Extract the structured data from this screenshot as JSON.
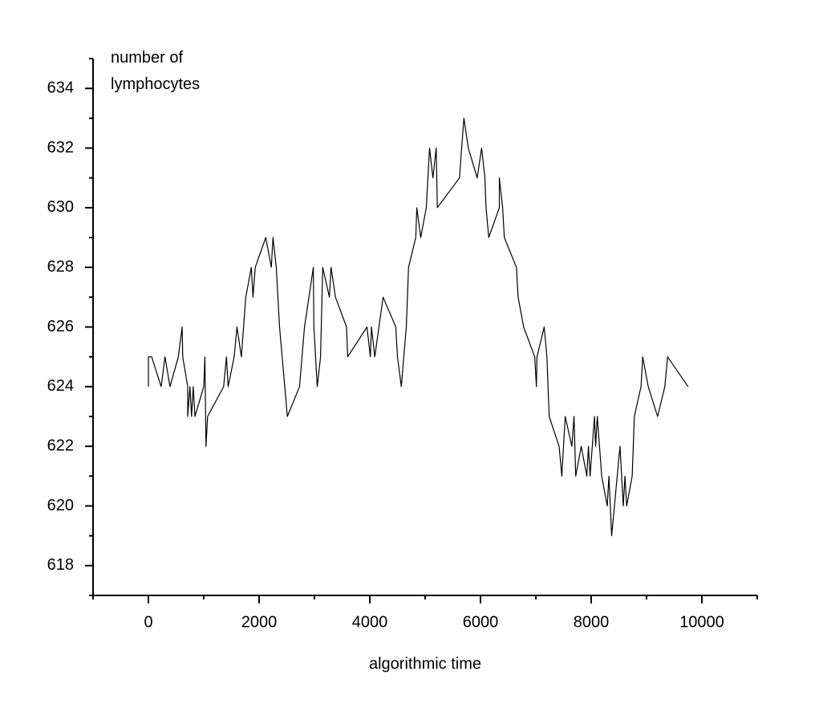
{
  "chart_data": {
    "type": "line",
    "y_label": "number of lymphocytes",
    "x_label": "algorithmic time",
    "color": "#000000",
    "x": [
      0,
      0,
      60,
      230,
      300,
      390,
      540,
      610,
      620,
      710,
      710,
      750,
      780,
      810,
      840,
      1000,
      1020,
      1040,
      1070,
      1360,
      1410,
      1440,
      1550,
      1600,
      1680,
      1760,
      1860,
      1890,
      1930,
      2120,
      2220,
      2250,
      2310,
      2370,
      2510,
      2730,
      2820,
      2980,
      2990,
      3050,
      3110,
      3150,
      3270,
      3300,
      3380,
      3580,
      3600,
      3950,
      4010,
      4030,
      4090,
      4240,
      4470,
      4500,
      4570,
      4660,
      4700,
      4830,
      4850,
      4920,
      5020,
      5080,
      5140,
      5200,
      5220,
      5620,
      5660,
      5700,
      5780,
      5940,
      6020,
      6080,
      6100,
      6150,
      6340,
      6340,
      6400,
      6430,
      6650,
      6680,
      6780,
      6980,
      7010,
      7020,
      7150,
      7200,
      7240,
      7420,
      7470,
      7530,
      7650,
      7690,
      7720,
      7820,
      7920,
      7950,
      7980,
      8060,
      8080,
      8110,
      8190,
      8290,
      8320,
      8370,
      8520,
      8580,
      8610,
      8640,
      8740,
      8780,
      8900,
      8930,
      9030,
      9200,
      9330,
      9380,
      9750
    ],
    "values": [
      624,
      625,
      625,
      624,
      625,
      624,
      625,
      626,
      625,
      624,
      623,
      624,
      623,
      624,
      623,
      624,
      625,
      622,
      623,
      624,
      625,
      624,
      625,
      626,
      625,
      627,
      628,
      627,
      628,
      629,
      628,
      629,
      628,
      626,
      623,
      624,
      626,
      628,
      626,
      624,
      625,
      628,
      627,
      628,
      627,
      626,
      625,
      626,
      625,
      626,
      625,
      627,
      626,
      625,
      624,
      626,
      628,
      629,
      630,
      629,
      630,
      632,
      631,
      632,
      630,
      631,
      632,
      633,
      632,
      631,
      632,
      631,
      630,
      629,
      630,
      631,
      630,
      629,
      628,
      627,
      626,
      625,
      624,
      625,
      626,
      625,
      623,
      622,
      621,
      623,
      622,
      623,
      621,
      622,
      621,
      622,
      621,
      623,
      622,
      623,
      621,
      620,
      621,
      619,
      622,
      620,
      621,
      620,
      621,
      623,
      624,
      625,
      624,
      623,
      624,
      625,
      624
    ],
    "xlim": [
      -1000,
      11000
    ],
    "ylim": [
      617,
      635
    ],
    "xticks": [
      0,
      2000,
      4000,
      6000,
      8000,
      10000
    ],
    "yticks": [
      618,
      620,
      622,
      624,
      626,
      628,
      630,
      632,
      634
    ],
    "xminorticks": [
      -1000,
      1000,
      3000,
      5000,
      7000,
      9000,
      11000
    ],
    "yminorticks": [
      617,
      619,
      621,
      623,
      625,
      627,
      629,
      631,
      633,
      635
    ]
  }
}
